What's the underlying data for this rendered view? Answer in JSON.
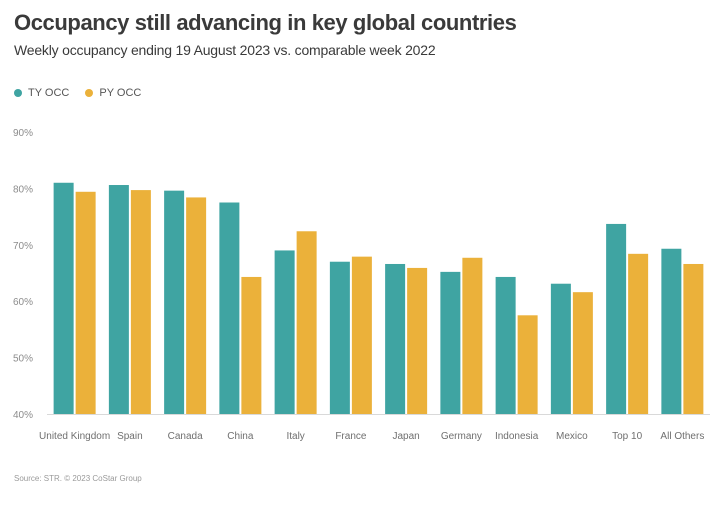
{
  "title": "Occupancy still advancing in key global countries",
  "subtitle": "Weekly occupancy ending 19 August 2023 vs. comparable week 2022",
  "source": "Source: STR. © 2023 CoStar Group",
  "colors": {
    "ty": "#3fa4a2",
    "py": "#ebb13a"
  },
  "chart_data": {
    "type": "bar",
    "title": "Occupancy still advancing in key global countries",
    "subtitle": "Weekly occupancy ending 19 August 2023 vs. comparable week 2022",
    "xlabel": "",
    "ylabel": "",
    "ylim": [
      40,
      90
    ],
    "yticks": [
      40,
      50,
      60,
      70,
      80,
      90
    ],
    "ytick_labels": [
      "40%",
      "50%",
      "60%",
      "70%",
      "80%",
      "90%"
    ],
    "grid": false,
    "legend_position": "top-left",
    "categories": [
      "United Kingdom",
      "Spain",
      "Canada",
      "China",
      "Italy",
      "France",
      "Japan",
      "Germany",
      "Indonesia",
      "Mexico",
      "Top 10",
      "All Others"
    ],
    "series": [
      {
        "name": "TY OCC",
        "color": "#3fa4a2",
        "values": [
          81.0,
          80.6,
          79.6,
          77.5,
          69.0,
          67.0,
          66.6,
          65.2,
          64.3,
          63.1,
          73.7,
          69.3
        ]
      },
      {
        "name": "PY OCC",
        "color": "#ebb13a",
        "values": [
          79.4,
          79.7,
          78.4,
          64.3,
          72.4,
          67.9,
          65.9,
          67.7,
          57.5,
          61.6,
          68.4,
          66.6
        ]
      }
    ]
  }
}
